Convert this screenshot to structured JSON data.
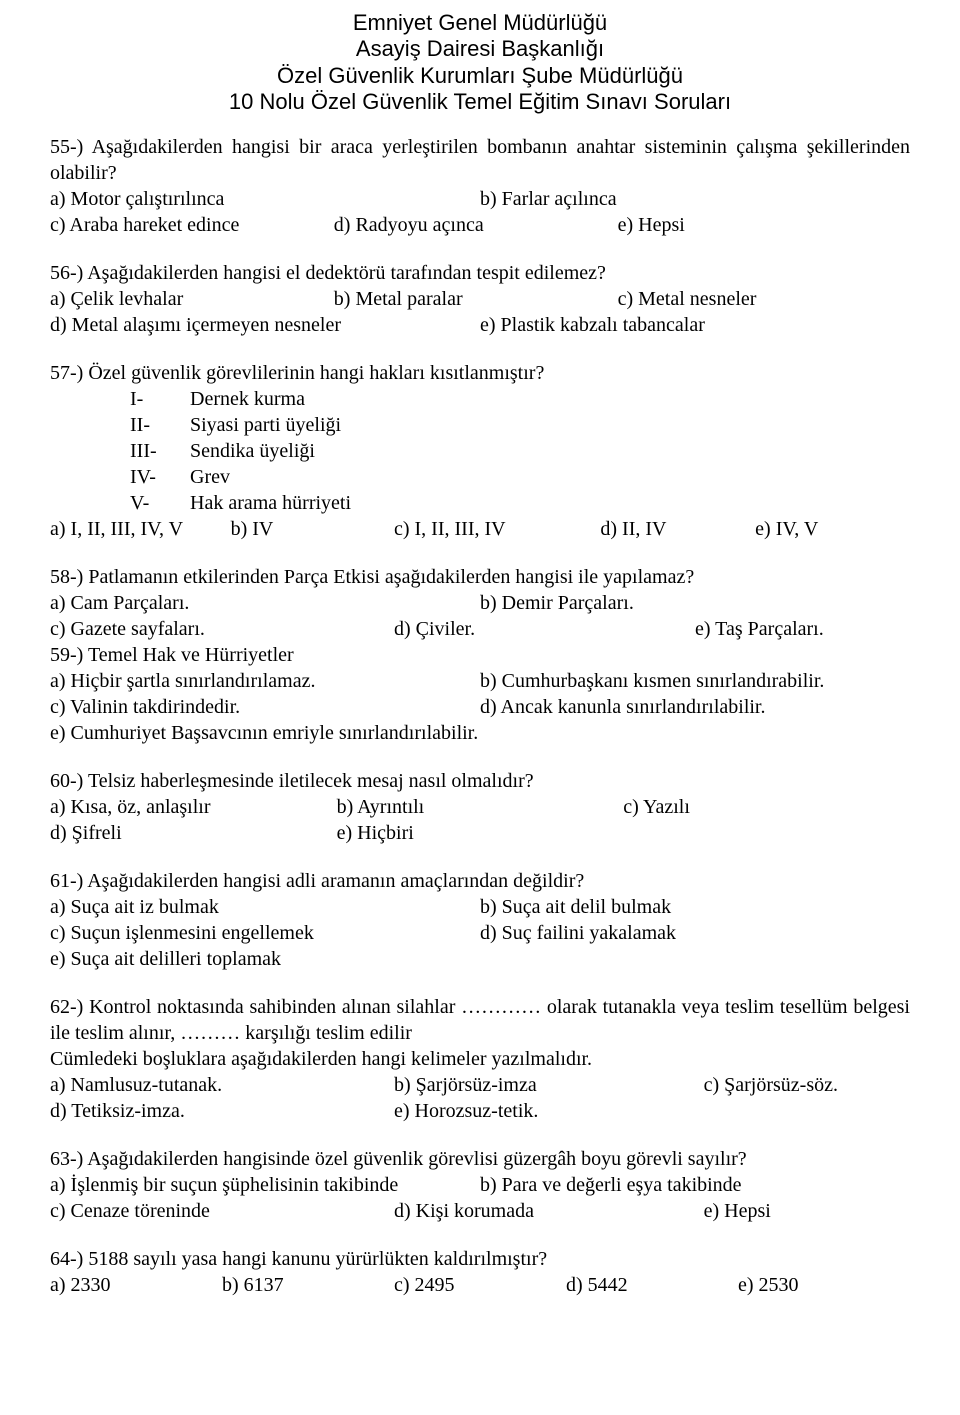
{
  "header": {
    "line1": "Emniyet Genel Müdürlüğü",
    "line2": "Asayiş Dairesi Başkanlığı",
    "line3": "Özel Güvenlik Kurumları Şube Müdürlüğü",
    "line4": "10 Nolu Özel Güvenlik Temel Eğitim Sınavı Soruları"
  },
  "q55": {
    "text": "55-) Aşağıdakilerden hangisi bir araca yerleştirilen bombanın anahtar sisteminin çalışma şekillerinden olabilir?",
    "a": "a) Motor çalıştırılınca",
    "b": "b) Farlar açılınca",
    "c": "c) Araba hareket edince",
    "d": "d) Radyoyu açınca",
    "e": "e) Hepsi"
  },
  "q56": {
    "text": "56-) Aşağıdakilerden hangisi el dedektörü tarafından tespit edilemez?",
    "a": "a) Çelik levhalar",
    "b": "b) Metal paralar",
    "c": "c) Metal nesneler",
    "d": "d) Metal alaşımı içermeyen nesneler",
    "e": "e) Plastik kabzalı tabancalar"
  },
  "q57": {
    "text": "57-) Özel güvenlik görevlilerinin hangi hakları kısıtlanmıştır?",
    "r1n": "I-",
    "r1t": "Dernek kurma",
    "r2n": "II-",
    "r2t": "Siyasi parti üyeliği",
    "r3n": "III-",
    "r3t": "Sendika üyeliği",
    "r4n": "IV-",
    "r4t": "Grev",
    "r5n": "V-",
    "r5t": "Hak arama hürriyeti",
    "a": "a) I, II, III, IV, V",
    "b": "b)  IV",
    "c": "c)  I, II, III, IV",
    "d": "d) II, IV",
    "e": "e)  IV, V"
  },
  "q58": {
    "text": "58-) Patlamanın etkilerinden Parça Etkisi aşağıdakilerden hangisi ile yapılamaz?",
    "a": "a) Cam Parçaları.",
    "b": "b) Demir Parçaları.",
    "c": "c) Gazete sayfaları.",
    "d": "d) Çiviler.",
    "e": "e) Taş Parçaları."
  },
  "q59": {
    "text": "59-) Temel Hak ve Hürriyetler",
    "a": "a) Hiçbir şartla sınırlandırılamaz.",
    "b": "b) Cumhurbaşkanı kısmen sınırlandırabilir.",
    "c": "c) Valinin takdirindedir.",
    "d": "d) Ancak kanunla sınırlandırılabilir.",
    "e": "e) Cumhuriyet Başsavcının emriyle sınırlandırılabilir."
  },
  "q60": {
    "text": "60-) Telsiz haberleşmesinde iletilecek mesaj nasıl olmalıdır?",
    "a": "a)  Kısa, öz, anlaşılır",
    "b": "b)  Ayrıntılı",
    "c": "c)  Yazılı",
    "d": "d)  Şifreli",
    "e": "e)  Hiçbiri"
  },
  "q61": {
    "text": "61-) Aşağıdakilerden hangisi adli aramanın amaçlarından değildir?",
    "a": "a) Suça ait iz bulmak",
    "b": "b) Suça ait delil bulmak",
    "c": "c) Suçun işlenmesini engellemek",
    "d": "d) Suç failini yakalamak",
    "e": "e) Suça ait delilleri toplamak"
  },
  "q62": {
    "text1": "62-) Kontrol noktasında sahibinden alınan silahlar ………… olarak tutanakla veya teslim tesellüm belgesi ile teslim alınır, ……… karşılığı teslim edilir",
    "text2": "Cümledeki boşluklara aşağıdakilerden hangi kelimeler yazılmalıdır.",
    "a": "a) Namlusuz-tutanak.",
    "b": "b) Şarjörsüz-imza",
    "c": "c) Şarjörsüz-söz.",
    "d": "d) Tetiksiz-imza.",
    "e": "e) Horozsuz-tetik."
  },
  "q63": {
    "text": "63-) Aşağıdakilerden hangisinde özel güvenlik görevlisi güzergâh boyu görevli sayılır?",
    "a": "a) İşlenmiş bir suçun şüphelisinin takibinde",
    "b": "b) Para ve değerli eşya takibinde",
    "c": "c) Cenaze töreninde",
    "d": "d) Kişi korumada",
    "e": "e) Hepsi"
  },
  "q64": {
    "text": "64-) 5188 sayılı yasa hangi kanunu yürürlükten kaldırılmıştır?",
    "a": "a) 2330",
    "b": "b) 6137",
    "c": "c) 2495",
    "d": "d) 5442",
    "e": "e) 2530"
  }
}
